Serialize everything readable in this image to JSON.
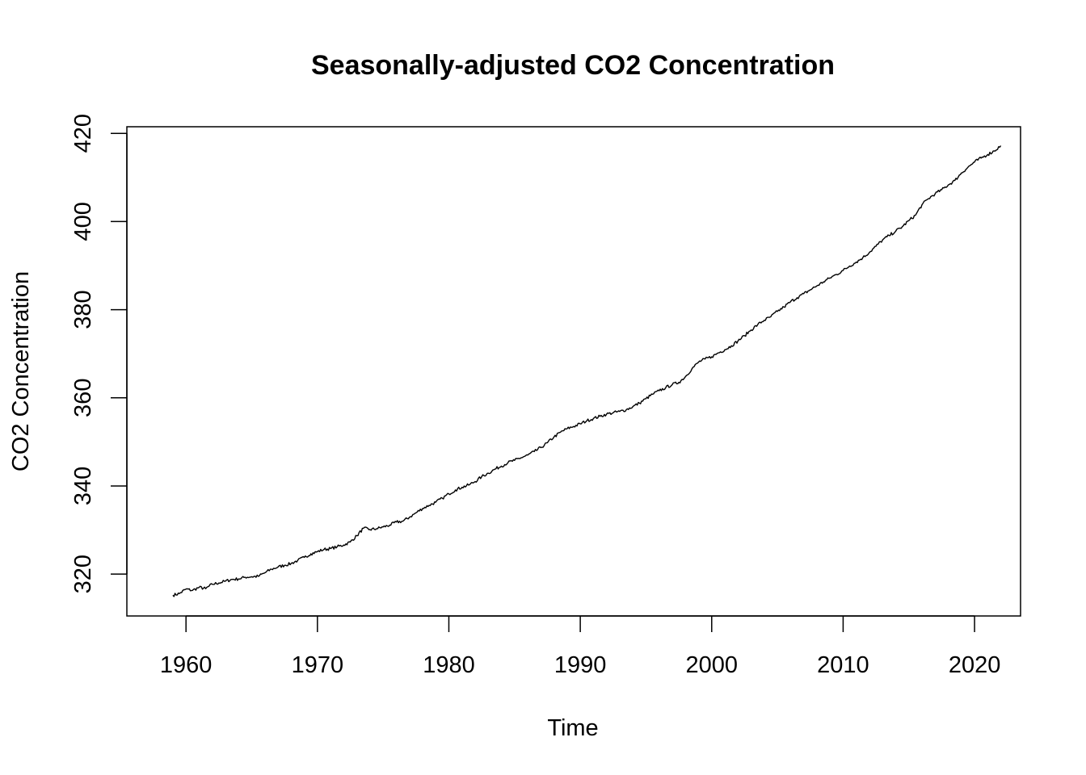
{
  "chart_data": {
    "type": "line",
    "title": "Seasonally-adjusted CO2 Concentration",
    "xlabel": "Time",
    "ylabel": "CO2 Concentration",
    "xlim": [
      1955.5,
      2023.5
    ],
    "ylim": [
      310.5,
      421.5
    ],
    "xticks": [
      1960,
      1970,
      1980,
      1990,
      2000,
      2010,
      2020
    ],
    "yticks": [
      320,
      340,
      360,
      380,
      400,
      420
    ],
    "grid": false,
    "legend": "none",
    "series": [
      {
        "color": "#000000",
        "x": [
          1959.0,
          1959.5,
          1960.0,
          1960.5,
          1961.0,
          1961.5,
          1962.0,
          1962.5,
          1963.0,
          1963.5,
          1964.0,
          1964.5,
          1965.0,
          1965.5,
          1966.0,
          1966.5,
          1967.0,
          1967.5,
          1968.0,
          1968.5,
          1969.0,
          1969.5,
          1970.0,
          1970.5,
          1971.0,
          1971.5,
          1972.0,
          1972.5,
          1973.0,
          1973.5,
          1974.0,
          1974.5,
          1975.0,
          1975.5,
          1976.0,
          1976.5,
          1977.0,
          1977.5,
          1978.0,
          1978.5,
          1979.0,
          1979.5,
          1980.0,
          1980.5,
          1981.0,
          1981.5,
          1982.0,
          1982.5,
          1983.0,
          1983.5,
          1984.0,
          1984.5,
          1985.0,
          1985.5,
          1986.0,
          1986.5,
          1987.0,
          1987.5,
          1988.0,
          1988.5,
          1989.0,
          1989.5,
          1990.0,
          1990.5,
          1991.0,
          1991.5,
          1992.0,
          1992.5,
          1993.0,
          1993.5,
          1994.0,
          1994.5,
          1995.0,
          1995.5,
          1996.0,
          1996.5,
          1997.0,
          1997.5,
          1998.0,
          1998.5,
          1999.0,
          1999.5,
          2000.0,
          2000.5,
          2001.0,
          2001.5,
          2002.0,
          2002.5,
          2003.0,
          2003.5,
          2004.0,
          2004.5,
          2005.0,
          2005.5,
          2006.0,
          2006.5,
          2007.0,
          2007.5,
          2008.0,
          2008.5,
          2009.0,
          2009.5,
          2010.0,
          2010.5,
          2011.0,
          2011.5,
          2012.0,
          2012.5,
          2013.0,
          2013.5,
          2014.0,
          2014.5,
          2015.0,
          2015.5,
          2016.0,
          2016.5,
          2017.0,
          2017.5,
          2018.0,
          2018.5,
          2019.0,
          2019.5,
          2020.0,
          2020.5,
          2021.0,
          2021.5,
          2022.0
        ],
        "values": [
          315.2,
          315.6,
          316.6,
          316.3,
          317.0,
          316.7,
          317.7,
          318.0,
          318.4,
          318.8,
          318.9,
          319.3,
          319.4,
          319.5,
          320.3,
          321.1,
          321.6,
          322.0,
          322.4,
          323.1,
          323.8,
          324.6,
          325.1,
          325.6,
          325.8,
          326.2,
          326.6,
          327.3,
          328.7,
          330.4,
          330.1,
          330.3,
          330.7,
          331.1,
          331.8,
          332.0,
          332.9,
          333.9,
          334.9,
          335.6,
          336.3,
          337.2,
          338.2,
          339.1,
          339.7,
          340.2,
          341.0,
          342.1,
          342.9,
          343.8,
          344.5,
          345.3,
          345.8,
          346.4,
          347.0,
          347.8,
          348.7,
          349.8,
          351.1,
          352.2,
          353.0,
          353.5,
          354.1,
          354.8,
          355.3,
          355.8,
          356.3,
          356.6,
          356.9,
          357.3,
          358.0,
          358.8,
          359.8,
          360.8,
          361.6,
          362.3,
          363.0,
          363.5,
          364.8,
          366.6,
          368.1,
          368.8,
          369.3,
          370.2,
          370.9,
          371.8,
          372.9,
          374.1,
          375.4,
          376.6,
          377.6,
          378.4,
          379.6,
          380.6,
          381.8,
          382.7,
          383.6,
          384.5,
          385.4,
          386.3,
          387.2,
          388.0,
          388.9,
          389.9,
          390.8,
          391.8,
          393.0,
          394.4,
          395.8,
          396.8,
          397.8,
          398.8,
          400.2,
          401.4,
          403.8,
          405.2,
          406.3,
          407.2,
          408.3,
          409.3,
          411.0,
          412.3,
          413.5,
          414.4,
          415.2,
          416.0,
          417.2
        ]
      }
    ]
  }
}
